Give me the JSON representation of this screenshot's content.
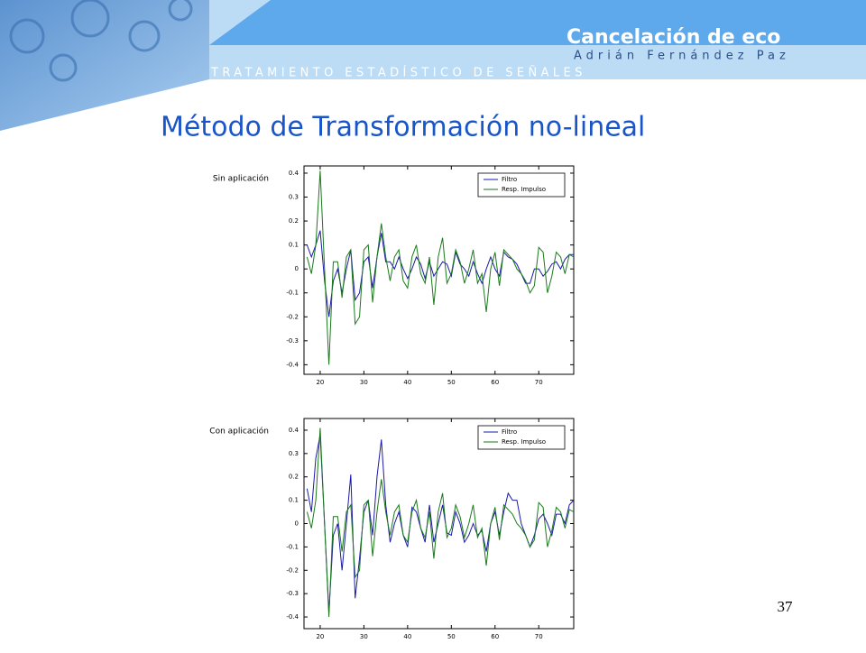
{
  "header": {
    "title": "Cancelación de eco",
    "author": "Adrián Fernández Paz",
    "course": "TRATAMIENTO ESTADÍSTICO DE SEÑALES"
  },
  "slide": {
    "title": "Método de Transformación no-lineal",
    "page_number": "37"
  },
  "chart_data": [
    {
      "type": "line",
      "title": "Sin aplicación",
      "legend": "upper right",
      "grid": false,
      "xlim": [
        16.3,
        78
      ],
      "xticks": [
        20,
        30,
        40,
        50,
        60,
        70
      ],
      "ylim": [
        -0.44,
        0.43
      ],
      "yticks": [
        -0.4,
        -0.3,
        -0.2,
        -0.1,
        0,
        0.1,
        0.2,
        0.3,
        0.4
      ],
      "x": [
        17,
        18,
        19,
        20,
        21,
        22,
        23,
        24,
        25,
        26,
        27,
        28,
        29,
        30,
        31,
        32,
        33,
        34,
        35,
        36,
        37,
        38,
        39,
        40,
        41,
        42,
        43,
        44,
        45,
        46,
        47,
        48,
        49,
        50,
        51,
        52,
        53,
        54,
        55,
        56,
        57,
        58,
        59,
        60,
        61,
        62,
        63,
        64,
        65,
        66,
        67,
        68,
        69,
        70,
        71,
        72,
        73,
        74,
        75,
        76,
        77,
        78
      ],
      "series": [
        {
          "name": "Filtro",
          "color": "#1a1aa8",
          "values": [
            0.1,
            0.05,
            0.1,
            0.16,
            -0.05,
            -0.2,
            -0.05,
            0.0,
            -0.1,
            0.0,
            0.08,
            -0.13,
            -0.1,
            0.03,
            0.05,
            -0.08,
            0.05,
            0.15,
            0.03,
            0.03,
            0.0,
            0.05,
            0.0,
            -0.04,
            0.0,
            0.05,
            0.02,
            -0.04,
            0.03,
            -0.03,
            0.0,
            0.03,
            0.02,
            -0.03,
            0.07,
            0.02,
            0.0,
            -0.03,
            0.03,
            -0.02,
            -0.06,
            0.0,
            0.05,
            0.0,
            -0.03,
            0.07,
            0.05,
            0.04,
            0.02,
            -0.02,
            -0.06,
            -0.06,
            0.0,
            0.0,
            -0.03,
            -0.01,
            0.02,
            0.03,
            0.0,
            0.04,
            0.06,
            0.06
          ]
        },
        {
          "name": "Resp. Impulso",
          "color": "#1a7a1a",
          "values": [
            0.05,
            -0.02,
            0.1,
            0.41,
            0.0,
            -0.4,
            0.03,
            0.03,
            -0.12,
            0.05,
            0.08,
            -0.23,
            -0.2,
            0.08,
            0.1,
            -0.14,
            0.05,
            0.19,
            0.05,
            -0.05,
            0.05,
            0.08,
            -0.05,
            -0.08,
            0.05,
            0.1,
            -0.02,
            -0.06,
            0.05,
            -0.15,
            0.05,
            0.13,
            -0.06,
            -0.02,
            0.08,
            0.03,
            -0.06,
            0.0,
            0.08,
            -0.06,
            -0.02,
            -0.18,
            0.0,
            0.07,
            -0.07,
            0.08,
            0.06,
            0.04,
            0.0,
            -0.02,
            -0.05,
            -0.1,
            -0.07,
            0.09,
            0.07,
            -0.1,
            -0.03,
            0.07,
            0.05,
            -0.02,
            0.06,
            0.05
          ]
        }
      ]
    },
    {
      "type": "line",
      "title": "Con aplicación",
      "legend": "upper right",
      "grid": false,
      "xlim": [
        16.3,
        78
      ],
      "xticks": [
        20,
        30,
        40,
        50,
        60,
        70
      ],
      "ylim": [
        -0.45,
        0.45
      ],
      "yticks": [
        -0.4,
        -0.3,
        -0.2,
        -0.1,
        0,
        0.1,
        0.2,
        0.3,
        0.4
      ],
      "x": [
        17,
        18,
        19,
        20,
        21,
        22,
        23,
        24,
        25,
        26,
        27,
        28,
        29,
        30,
        31,
        32,
        33,
        34,
        35,
        36,
        37,
        38,
        39,
        40,
        41,
        42,
        43,
        44,
        45,
        46,
        47,
        48,
        49,
        50,
        51,
        52,
        53,
        54,
        55,
        56,
        57,
        58,
        59,
        60,
        61,
        62,
        63,
        64,
        65,
        66,
        67,
        68,
        69,
        70,
        71,
        72,
        73,
        74,
        75,
        76,
        77,
        78
      ],
      "series": [
        {
          "name": "Filtro",
          "color": "#1a1aa8",
          "values": [
            0.15,
            0.05,
            0.28,
            0.38,
            0.0,
            -0.38,
            -0.05,
            0.0,
            -0.2,
            0.0,
            0.21,
            -0.32,
            -0.15,
            0.05,
            0.1,
            -0.05,
            0.2,
            0.36,
            0.08,
            -0.08,
            0.0,
            0.05,
            -0.05,
            -0.1,
            0.07,
            0.05,
            -0.02,
            -0.08,
            0.08,
            -0.08,
            0.0,
            0.08,
            -0.04,
            -0.05,
            0.05,
            0.0,
            -0.08,
            -0.05,
            0.0,
            -0.05,
            -0.03,
            -0.12,
            0.0,
            0.05,
            -0.05,
            0.05,
            0.13,
            0.1,
            0.1,
            0.0,
            -0.05,
            -0.1,
            -0.05,
            0.02,
            0.04,
            0.0,
            -0.05,
            0.04,
            0.04,
            0.0,
            0.08,
            0.1
          ]
        },
        {
          "name": "Resp. Impulso",
          "color": "#1a7a1a",
          "values": [
            0.05,
            -0.02,
            0.1,
            0.41,
            0.0,
            -0.4,
            0.03,
            0.03,
            -0.12,
            0.05,
            0.08,
            -0.23,
            -0.2,
            0.08,
            0.1,
            -0.14,
            0.05,
            0.19,
            0.05,
            -0.05,
            0.05,
            0.08,
            -0.05,
            -0.08,
            0.05,
            0.1,
            -0.02,
            -0.06,
            0.05,
            -0.15,
            0.05,
            0.13,
            -0.06,
            -0.02,
            0.08,
            0.03,
            -0.06,
            0.0,
            0.08,
            -0.06,
            -0.02,
            -0.18,
            0.0,
            0.07,
            -0.07,
            0.08,
            0.06,
            0.04,
            0.0,
            -0.02,
            -0.05,
            -0.1,
            -0.07,
            0.09,
            0.07,
            -0.1,
            -0.03,
            0.07,
            0.05,
            -0.02,
            0.06,
            0.05
          ]
        }
      ]
    }
  ]
}
